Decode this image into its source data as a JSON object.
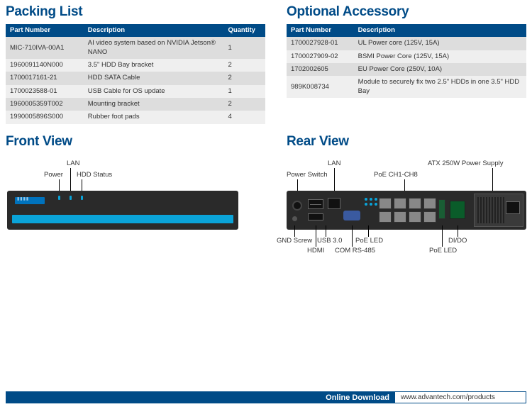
{
  "packing": {
    "title": "Packing List",
    "columns": [
      "Part Number",
      "Description",
      "Quantity"
    ],
    "rows": [
      [
        "MIC-710IVA-00A1",
        "AI video system based on NVIDIA Jetson® NANO",
        "1"
      ],
      [
        "1960091140N000",
        "3.5\" HDD Bay bracket",
        "2"
      ],
      [
        "1700017161-21",
        "HDD SATA Cable",
        "2"
      ],
      [
        "1700023588-01",
        "USB Cable for OS update",
        "1"
      ],
      [
        "1960005359T002",
        "Mounting bracket",
        "2"
      ],
      [
        "1990005896S000",
        "Rubber foot pads",
        "4"
      ]
    ]
  },
  "accessory": {
    "title": "Optional Accessory",
    "columns": [
      "Part Number",
      "Description"
    ],
    "rows": [
      [
        "1700027928-01",
        "UL Power core (125V, 15A)"
      ],
      [
        "1700027909-02",
        "BSMI Power Core (125V, 15A)"
      ],
      [
        "1702002605",
        "EU Power Core (250V, 10A)"
      ],
      [
        "989K008734",
        "Module to securely fix two 2.5\" HDDs in one 3.5\" HDD Bay"
      ]
    ]
  },
  "views": {
    "front_title": "Front View",
    "rear_title": "Rear View",
    "front_labels": {
      "power": "Power",
      "lan": "LAN",
      "hdd": "HDD Status"
    },
    "rear_labels": {
      "power_switch": "Power Switch",
      "lan": "LAN",
      "poe_ch": "PoE CH1-CH8",
      "atx": "ATX 250W Power Supply",
      "gnd": "GND Screw",
      "hdmi": "HDMI",
      "usb": "USB 3.0",
      "com": "COM RS-485",
      "poe_led": "PoE LED",
      "poe_led2": "PoE LED",
      "dido": "DI/DO"
    },
    "colors": {
      "device_body": "#2a2a2a",
      "accent": "#0aa3d8",
      "brand": "#004b87"
    }
  },
  "footer": {
    "label": "Online Download",
    "url": "www.advantech.com/products"
  }
}
